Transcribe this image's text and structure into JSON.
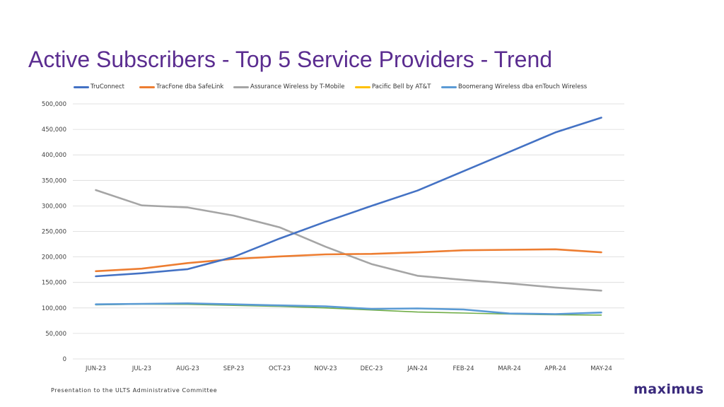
{
  "slide": {
    "title": "Active Subscribers - Top 5 Service Providers - Trend",
    "footer": "Presentation to the ULTS Administrative Committee",
    "logo_text": "maximus"
  },
  "colors": {
    "title": "#5b2d90",
    "gridline": "#d9d9d9",
    "axis_text": "#404040"
  },
  "chart_data": {
    "type": "line",
    "title": "Active Subscribers - Top 5 Service Providers - Trend",
    "xlabel": "",
    "ylabel": "",
    "ylim": [
      0,
      500000
    ],
    "yticks": [
      0,
      50000,
      100000,
      150000,
      200000,
      250000,
      300000,
      350000,
      400000,
      450000,
      500000
    ],
    "ytick_labels": [
      "0",
      "50,000",
      "100,000",
      "150,000",
      "200,000",
      "250,000",
      "300,000",
      "350,000",
      "400,000",
      "450,000",
      "500,000"
    ],
    "grid": true,
    "legend_position": "top",
    "categories": [
      "JUN-23",
      "JUL-23",
      "AUG-23",
      "SEP-23",
      "OCT-23",
      "NOV-23",
      "DEC-23",
      "JAN-24",
      "FEB-24",
      "MAR-24",
      "APR-24",
      "MAY-24"
    ],
    "series": [
      {
        "name": "TruConnect",
        "color": "#4472c4",
        "values": [
          162000,
          168000,
          176000,
          200000,
          236000,
          269000,
          300000,
          330000,
          368000,
          406000,
          444000,
          473000
        ]
      },
      {
        "name": "TracFone dba SafeLink",
        "color": "#ed7d31",
        "values": [
          172000,
          177000,
          188000,
          196000,
          201000,
          205000,
          206000,
          209000,
          213000,
          214000,
          215000,
          209000
        ]
      },
      {
        "name": "Assurance Wireless by T-Mobile",
        "color": "#a5a5a5",
        "values": [
          331000,
          301000,
          297000,
          281000,
          258000,
          220000,
          186000,
          163000,
          155000,
          148000,
          140000,
          134000
        ]
      },
      {
        "name": "Pacific Bell by AT&T",
        "color": "#ffc000",
        "values": [
          null,
          null,
          null,
          null,
          null,
          null,
          null,
          null,
          null,
          null,
          null,
          null
        ]
      },
      {
        "name": "Boomerang Wireless dba enTouch Wireless",
        "color": "#5b9bd5",
        "values": [
          107000,
          108000,
          109000,
          107000,
          105000,
          103000,
          98000,
          99000,
          97000,
          89000,
          88000,
          91000
        ]
      },
      {
        "name": "",
        "color": "#70ad47",
        "show_in_legend": false,
        "values": [
          106000,
          107500,
          107000,
          105000,
          103000,
          100000,
          96000,
          92000,
          90000,
          88000,
          86500,
          86000
        ]
      }
    ]
  }
}
